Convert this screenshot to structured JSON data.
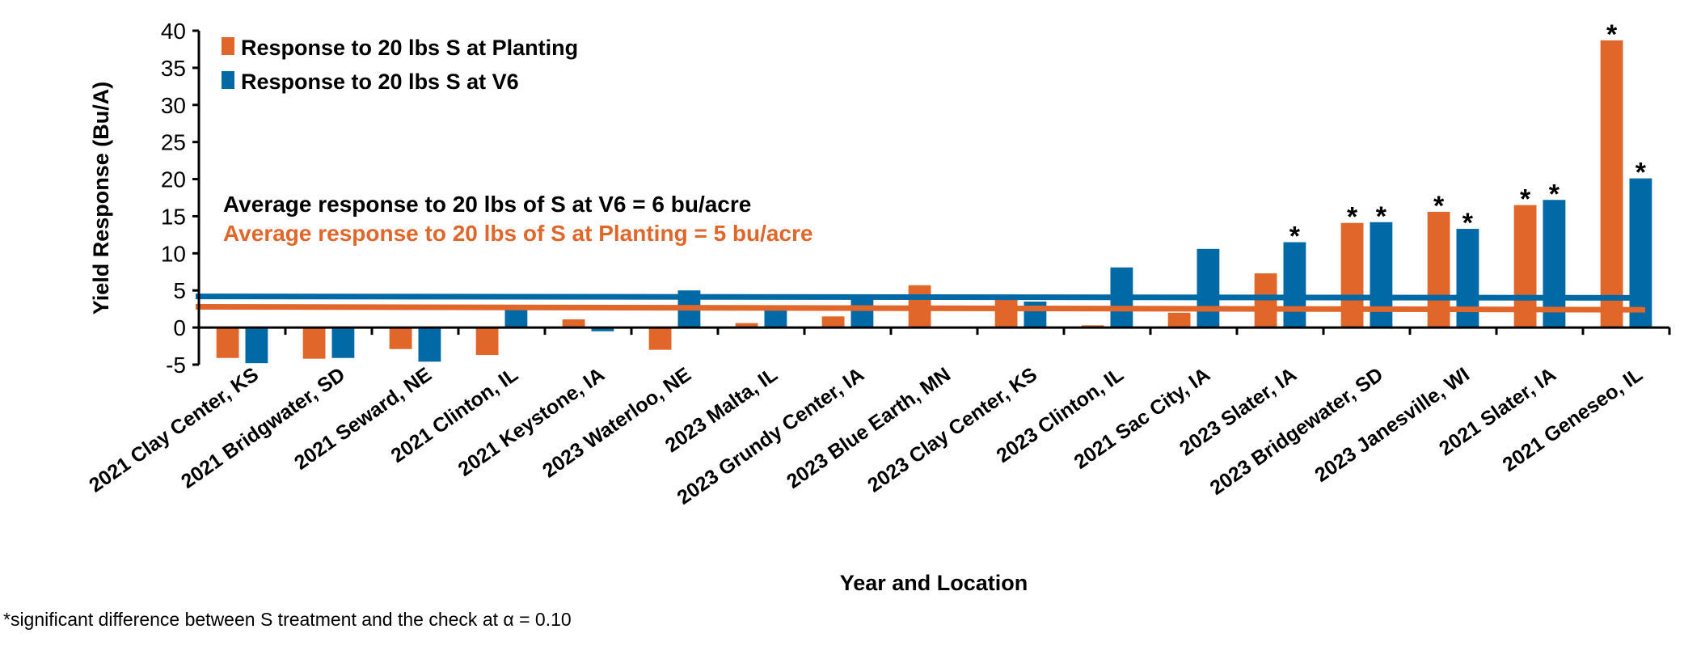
{
  "colors": {
    "planting": "#E0662A",
    "v6": "#0069A6",
    "axis": "#000000",
    "planting_text": "#E0662A",
    "v6_text": "#000000"
  },
  "chart_data": {
    "type": "bar",
    "title": "",
    "xlabel": "Year and Location",
    "ylabel": "Yield Response (Bu/A)",
    "ylim": [
      -5,
      40
    ],
    "yticks": [
      -5,
      0,
      5,
      10,
      15,
      20,
      25,
      30,
      35,
      40
    ],
    "grid": false,
    "legend_placement": "top-left",
    "categories": [
      "2021 Clay Center, KS",
      "2021 Bridgwater, SD",
      "2021 Seward, NE",
      "2021 Clinton, IL",
      "2021 Keystone, IA",
      "2023 Waterloo, NE",
      "2023 Malta, IL",
      "2023 Grundy Center, IA",
      "2023 Blue Earth, MN",
      "2023 Clay Center, KS",
      "2023 Clinton, IL",
      "2021 Sac City, IA",
      "2023 Slater, IA",
      "2023 Bridgewater, SD",
      "2023 Janesville, WI",
      "2021 Slater, IA",
      "2021 Geneseo, IL"
    ],
    "series": [
      {
        "name": "Response to 20 lbs S at Planting",
        "color": "#E0662A",
        "values": [
          -4.1,
          -4.2,
          -2.9,
          -3.7,
          1.1,
          -3.0,
          0.6,
          1.5,
          5.7,
          4.0,
          0.3,
          2.0,
          7.3,
          14.1,
          15.6,
          16.5,
          38.7
        ],
        "significant": [
          false,
          false,
          false,
          false,
          false,
          false,
          false,
          false,
          false,
          false,
          false,
          false,
          false,
          true,
          true,
          true,
          true
        ]
      },
      {
        "name": "Response to 20 lbs S at V6",
        "color": "#0069A6",
        "values": [
          -4.8,
          -4.1,
          -4.6,
          2.5,
          -0.5,
          5.0,
          3.0,
          3.8,
          0,
          3.5,
          8.1,
          10.6,
          11.5,
          14.2,
          13.3,
          17.2,
          20.1
        ],
        "significant": [
          false,
          false,
          false,
          false,
          false,
          false,
          false,
          false,
          false,
          false,
          false,
          false,
          true,
          true,
          true,
          true,
          true
        ]
      }
    ],
    "reference_lines": [
      {
        "series": "v6",
        "color": "#0069A6",
        "start": 4.2,
        "end": 4.0
      },
      {
        "series": "planting",
        "color": "#E0662A",
        "start": 2.8,
        "end": 2.4
      }
    ],
    "significance_marker": "*",
    "annotations": [
      "Average response to 20 lbs of S at V6 = 6 bu/acre",
      "Average response to 20 lbs of S at Planting = 5 bu/acre"
    ]
  },
  "footnote": "*significant difference between S treatment and the check at α = 0.10"
}
